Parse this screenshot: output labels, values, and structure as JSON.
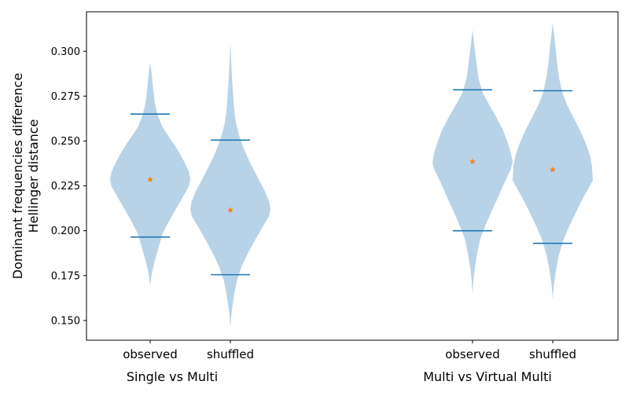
{
  "chart_data": {
    "type": "violin",
    "title": "",
    "ylabel_lines": [
      "Dominant frequencies difference",
      "Hellinger distance"
    ],
    "ylim": [
      0.139,
      0.322
    ],
    "yticks": [
      0.15,
      0.175,
      0.2,
      0.225,
      0.25,
      0.275,
      0.3
    ],
    "ytick_labels": [
      "0.150",
      "0.175",
      "0.200",
      "0.225",
      "0.250",
      "0.275",
      "0.300"
    ],
    "grid": false,
    "legend": "none",
    "colors": {
      "violin_fill": "#b8d3e8",
      "whisker": "#1f77b4",
      "median_marker": "#ff7f0e",
      "axis": "#000000"
    },
    "groups": [
      {
        "label": "Single vs Multi"
      },
      {
        "label": "Multi vs Virtual Multi"
      }
    ],
    "violins": [
      {
        "group": 0,
        "label": "observed",
        "median": 0.2285,
        "whisker_low": 0.1965,
        "whisker_high": 0.265,
        "min": 0.1695,
        "max": 0.294,
        "profile": [
          [
            0.1695,
            0
          ],
          [
            0.176,
            0.04
          ],
          [
            0.182,
            0.1
          ],
          [
            0.19,
            0.2
          ],
          [
            0.198,
            0.3
          ],
          [
            0.205,
            0.46
          ],
          [
            0.212,
            0.64
          ],
          [
            0.219,
            0.82
          ],
          [
            0.225,
            0.97
          ],
          [
            0.229,
            1.0
          ],
          [
            0.233,
            0.96
          ],
          [
            0.238,
            0.86
          ],
          [
            0.243,
            0.74
          ],
          [
            0.248,
            0.6
          ],
          [
            0.253,
            0.45
          ],
          [
            0.258,
            0.3
          ],
          [
            0.265,
            0.18
          ],
          [
            0.272,
            0.11
          ],
          [
            0.28,
            0.07
          ],
          [
            0.287,
            0.04
          ],
          [
            0.294,
            0
          ]
        ]
      },
      {
        "group": 0,
        "label": "shuffled",
        "median": 0.2115,
        "whisker_low": 0.1755,
        "whisker_high": 0.2505,
        "min": 0.146,
        "max": 0.305,
        "profile": [
          [
            0.146,
            0
          ],
          [
            0.152,
            0.02
          ],
          [
            0.158,
            0.05
          ],
          [
            0.165,
            0.1
          ],
          [
            0.172,
            0.16
          ],
          [
            0.18,
            0.28
          ],
          [
            0.188,
            0.45
          ],
          [
            0.195,
            0.62
          ],
          [
            0.202,
            0.8
          ],
          [
            0.208,
            0.96
          ],
          [
            0.212,
            1.0
          ],
          [
            0.216,
            0.97
          ],
          [
            0.222,
            0.86
          ],
          [
            0.228,
            0.72
          ],
          [
            0.234,
            0.58
          ],
          [
            0.24,
            0.45
          ],
          [
            0.246,
            0.33
          ],
          [
            0.253,
            0.22
          ],
          [
            0.26,
            0.14
          ],
          [
            0.268,
            0.09
          ],
          [
            0.275,
            0.07
          ],
          [
            0.285,
            0.04
          ],
          [
            0.295,
            0.02
          ],
          [
            0.305,
            0
          ]
        ]
      },
      {
        "group": 1,
        "label": "observed",
        "median": 0.2385,
        "whisker_low": 0.2,
        "whisker_high": 0.2785,
        "min": 0.165,
        "max": 0.312,
        "profile": [
          [
            0.165,
            0
          ],
          [
            0.172,
            0.02
          ],
          [
            0.18,
            0.06
          ],
          [
            0.188,
            0.12
          ],
          [
            0.196,
            0.2
          ],
          [
            0.204,
            0.34
          ],
          [
            0.212,
            0.5
          ],
          [
            0.22,
            0.66
          ],
          [
            0.228,
            0.82
          ],
          [
            0.234,
            0.95
          ],
          [
            0.238,
            1.0
          ],
          [
            0.243,
            0.96
          ],
          [
            0.249,
            0.88
          ],
          [
            0.256,
            0.76
          ],
          [
            0.263,
            0.6
          ],
          [
            0.27,
            0.42
          ],
          [
            0.277,
            0.25
          ],
          [
            0.285,
            0.15
          ],
          [
            0.293,
            0.1
          ],
          [
            0.3,
            0.06
          ],
          [
            0.306,
            0.03
          ],
          [
            0.312,
            0
          ]
        ]
      },
      {
        "group": 1,
        "label": "shuffled",
        "median": 0.234,
        "whisker_low": 0.193,
        "whisker_high": 0.278,
        "min": 0.162,
        "max": 0.316,
        "profile": [
          [
            0.162,
            0
          ],
          [
            0.17,
            0.03
          ],
          [
            0.178,
            0.08
          ],
          [
            0.186,
            0.15
          ],
          [
            0.194,
            0.25
          ],
          [
            0.202,
            0.4
          ],
          [
            0.21,
            0.57
          ],
          [
            0.218,
            0.75
          ],
          [
            0.224,
            0.9
          ],
          [
            0.228,
            1.0
          ],
          [
            0.232,
            0.99
          ],
          [
            0.236,
            0.98
          ],
          [
            0.242,
            0.93
          ],
          [
            0.249,
            0.82
          ],
          [
            0.256,
            0.68
          ],
          [
            0.263,
            0.52
          ],
          [
            0.27,
            0.36
          ],
          [
            0.277,
            0.24
          ],
          [
            0.285,
            0.16
          ],
          [
            0.293,
            0.11
          ],
          [
            0.3,
            0.08
          ],
          [
            0.308,
            0.04
          ],
          [
            0.316,
            0
          ]
        ]
      }
    ]
  }
}
